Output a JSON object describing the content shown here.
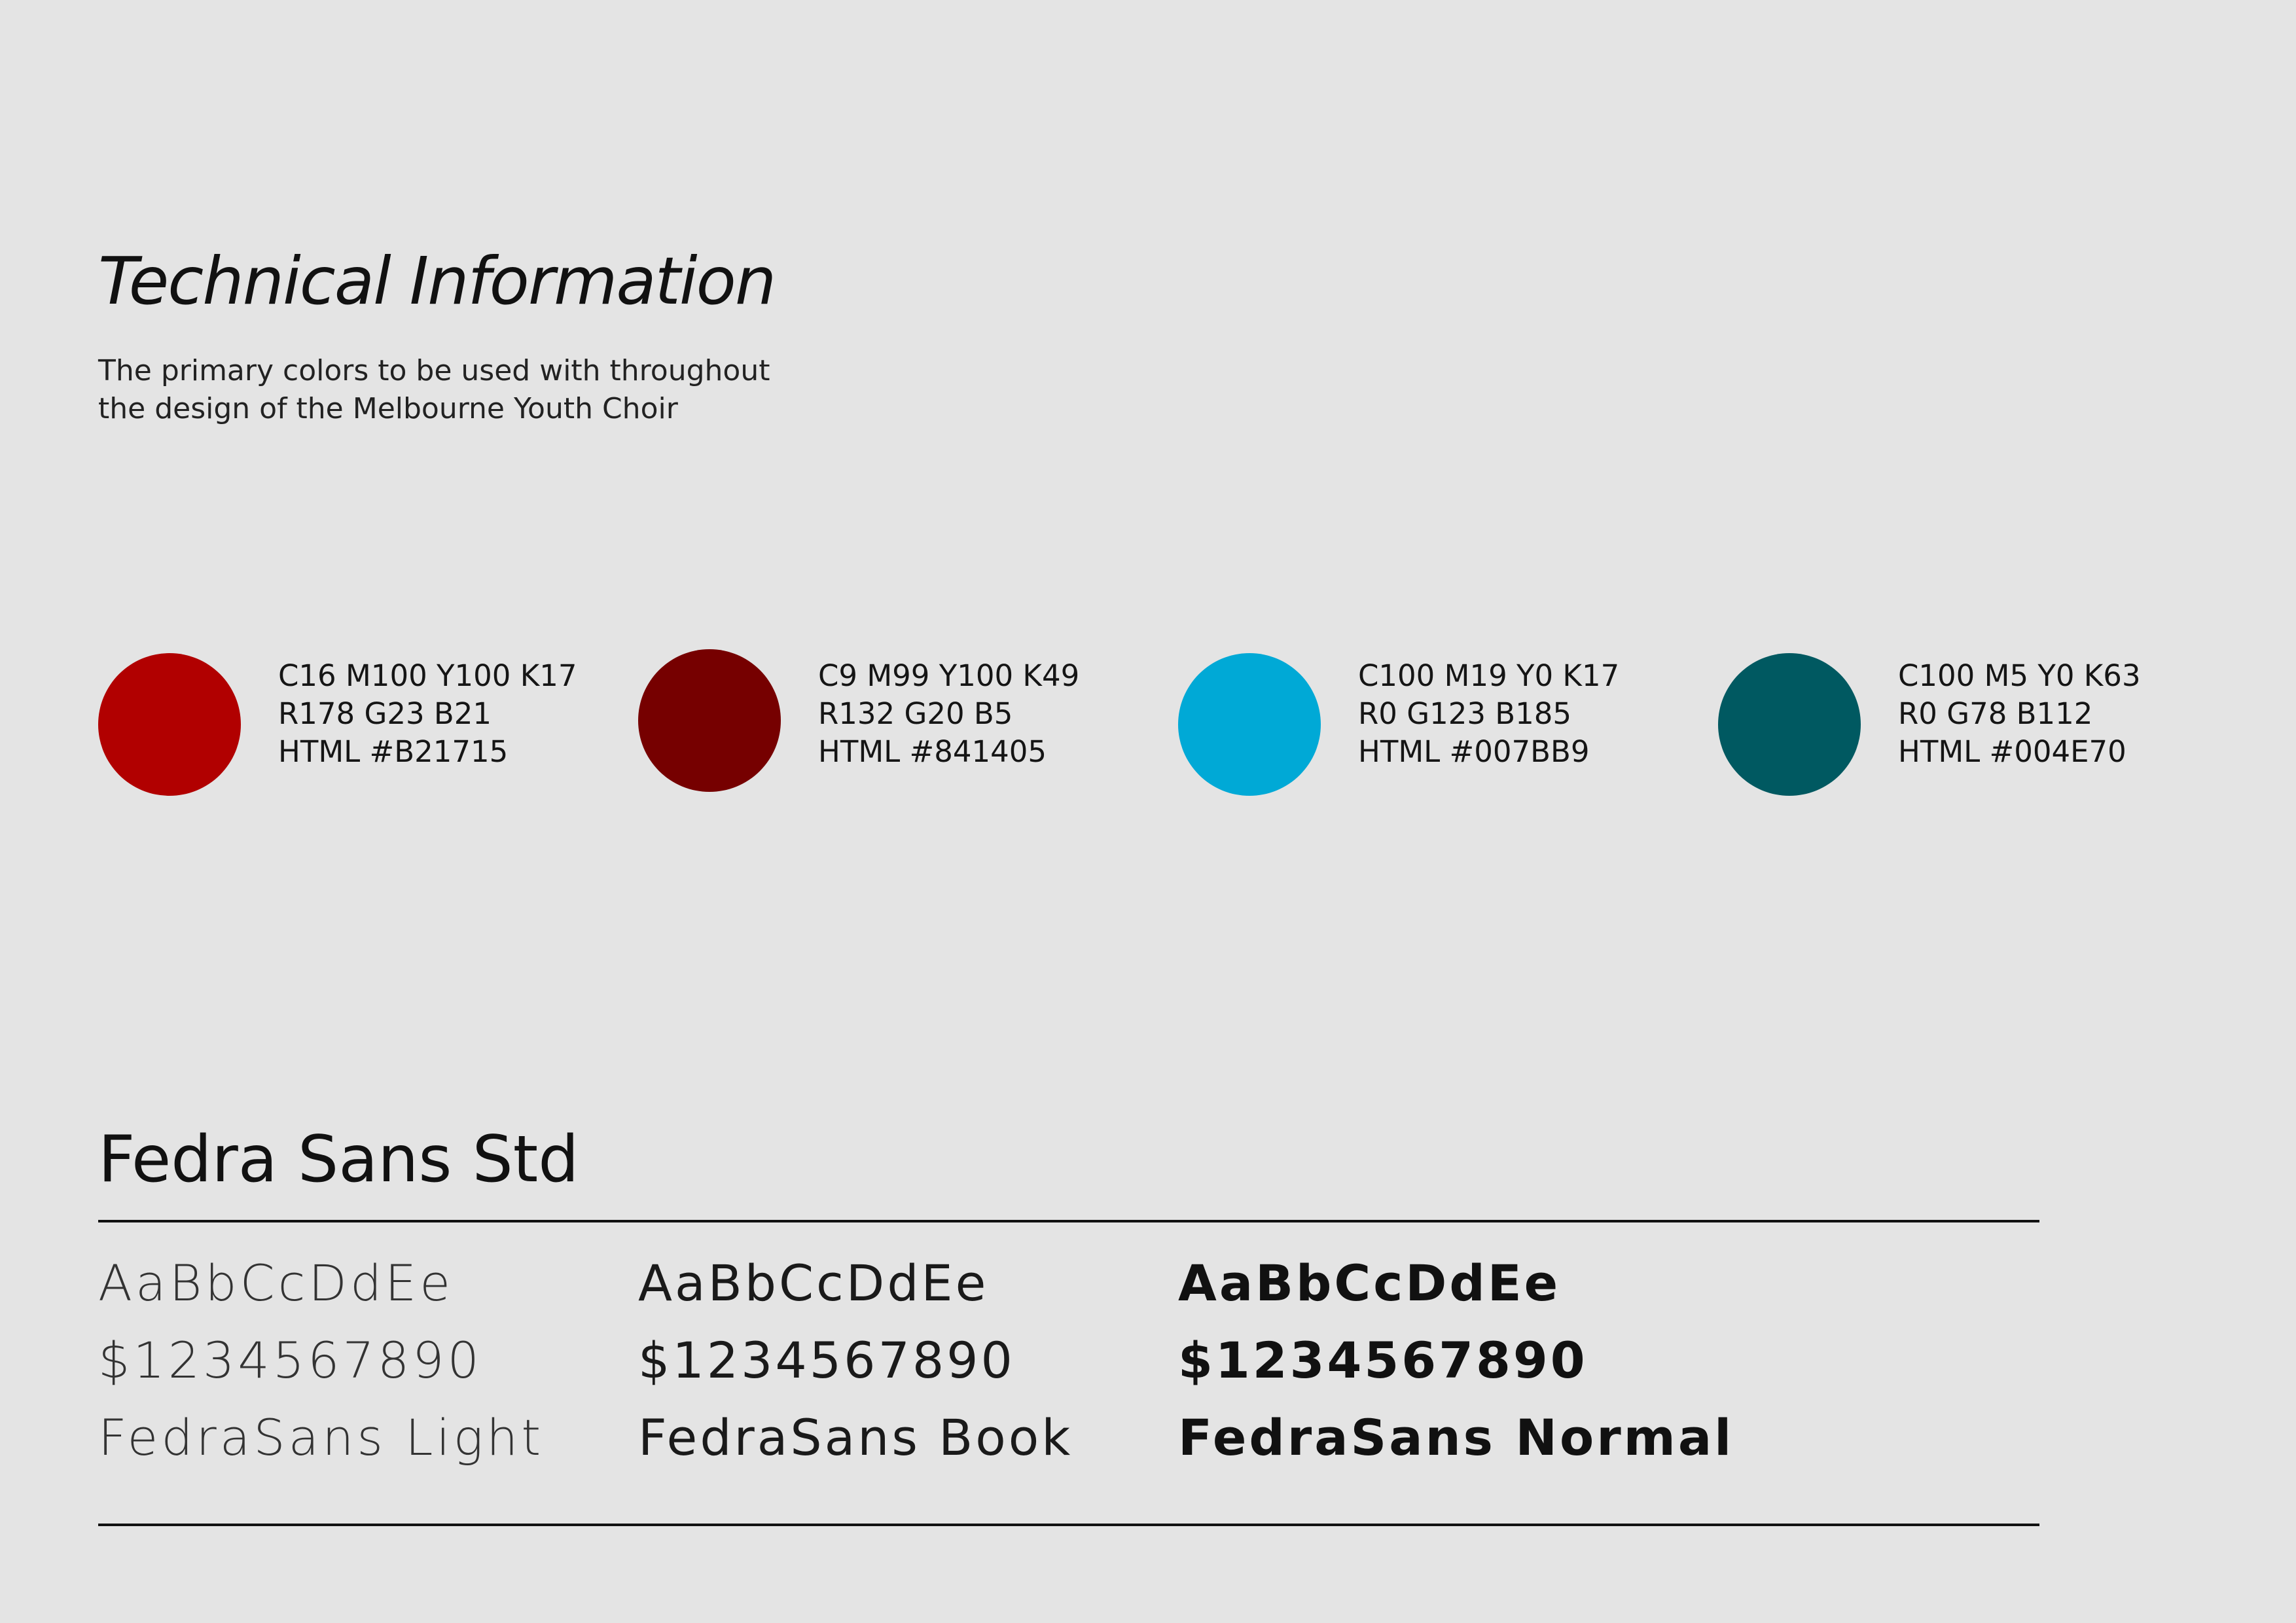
{
  "header": {
    "title": "Technical Information",
    "description_line1": "The primary colors to be used with throughout",
    "description_line2": "the design of the Melbourne Youth Choir"
  },
  "colors": [
    {
      "hex": "#B21715",
      "cmyk": "C16 M100 Y100 K17",
      "rgb": "R178 G23 B21",
      "html": "HTML #B21715"
    },
    {
      "hex": "#841405",
      "cmyk": "C9 M99 Y100 K49",
      "rgb": "R132 G20 B5",
      "html": "HTML #841405"
    },
    {
      "hex": "#007BB9",
      "cmyk": "C100 M19 Y0 K17",
      "rgb": "R0 G123 B185",
      "html": "HTML #007BB9"
    },
    {
      "hex": "#004E70",
      "cmyk": "C100 M5 Y0 K63",
      "rgb": "R0 G78 B112",
      "html": "HTML #004E70"
    }
  ],
  "swatch_display_colors": [
    "#b10000",
    "#760000",
    "#00a9d6",
    "#005961"
  ],
  "typography": {
    "family_title": "Fedra Sans Std",
    "weights": [
      {
        "sample_letters": "AaBbCcDdEe",
        "sample_numbers": "$1234567890",
        "name": "FedraSans Light"
      },
      {
        "sample_letters": "AaBbCcDdEe",
        "sample_numbers": "$1234567890",
        "name": "FedraSans Book"
      },
      {
        "sample_letters": "AaBbCcDdEe",
        "sample_numbers": "$1234567890",
        "name": "FedraSans Normal"
      }
    ]
  }
}
